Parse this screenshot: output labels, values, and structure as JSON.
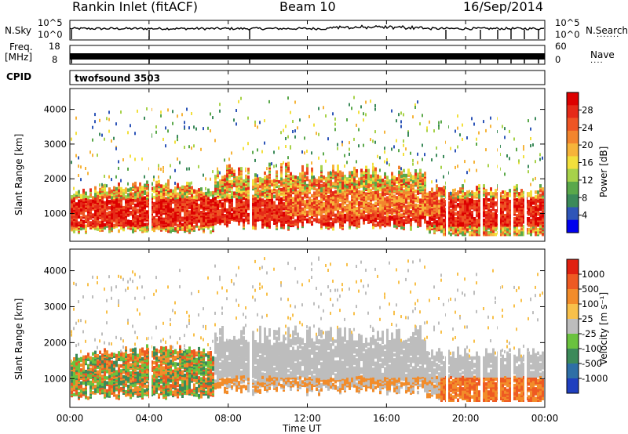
{
  "header": {
    "station": "Rankin Inlet (fitACF)",
    "beam": "Beam 10",
    "date": "16/Sep/2014"
  },
  "top_strip": {
    "left_label": "N.Sky",
    "right_label": "N.Search",
    "left_ticks": [
      "10^5",
      "10^0"
    ],
    "right_ticks": [
      "10^5",
      "10^0"
    ]
  },
  "freq_strip": {
    "left_label_line1": "Freq.",
    "left_label_line2": "[MHz]",
    "right_label": "Nave",
    "left_ticks": [
      "18",
      "8"
    ],
    "right_ticks": [
      "60",
      "0"
    ]
  },
  "cpid": {
    "label": "CPID",
    "value": "twofsound 3503"
  },
  "chart_data": [
    {
      "type": "heatmap",
      "title": "",
      "ylabel": "Slant Range [km]",
      "xlabel": "",
      "ylim": [
        200,
        4600
      ],
      "yticks": [
        "1000",
        "2000",
        "3000",
        "4000"
      ],
      "colorbar": {
        "label": "Power [dB]",
        "ticks": [
          "28",
          "24",
          "20",
          "16",
          "12",
          "8",
          "4"
        ],
        "colors": [
          "#0000ee",
          "#2e55b8",
          "#3b8a5a",
          "#5aa84a",
          "#a7d24a",
          "#f2e03c",
          "#f6b43a",
          "#f2852e",
          "#ee5524",
          "#e52a18",
          "#dd0000"
        ]
      }
    },
    {
      "type": "heatmap",
      "title": "",
      "ylabel": "Slant Range [km]",
      "xlabel": "Time UT",
      "ylim": [
        200,
        4600
      ],
      "yticks": [
        "1000",
        "2000",
        "3000",
        "4000"
      ],
      "xticks": [
        "00:00",
        "04:00",
        "08:00",
        "12:00",
        "16:00",
        "20:00",
        "00:00"
      ],
      "colorbar": {
        "label": "Velocity [m s⁻¹]",
        "ticks": [
          "1000",
          "500",
          "100",
          "25",
          "-25",
          "-100",
          "-500",
          "-1000"
        ],
        "colors": [
          "#1f3fbf",
          "#2e6fa6",
          "#3c8a5a",
          "#6ac23e",
          "#bdbdbd",
          "#f8c04a",
          "#f28c2a",
          "#ee5a22",
          "#e02010"
        ]
      }
    }
  ]
}
